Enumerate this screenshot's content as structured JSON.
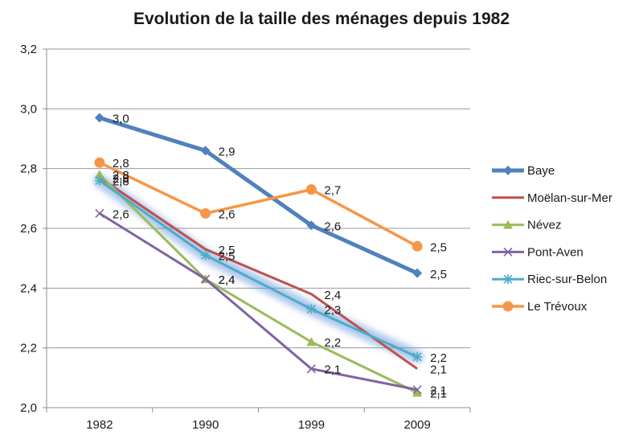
{
  "chart_data": {
    "type": "line",
    "title": "Evolution de la taille des ménages depuis 1982",
    "categories": [
      "1982",
      "1990",
      "1999",
      "2009"
    ],
    "ylim": [
      2.0,
      3.2
    ],
    "yticks": [
      "2,0",
      "2,2",
      "2,4",
      "2,6",
      "2,8",
      "3,0",
      "3,2"
    ],
    "ytick_values": [
      2.0,
      2.2,
      2.4,
      2.6,
      2.8,
      3.0,
      3.2
    ],
    "grid": "horizontal",
    "legend": "right",
    "series": [
      {
        "name": "Baye",
        "values": [
          2.97,
          2.86,
          2.61,
          2.45
        ],
        "labels": [
          "3,0",
          "2,9",
          "2,6",
          "2,5"
        ],
        "color": "#4F81BD",
        "marker": "diamond"
      },
      {
        "name": "Moëlan-sur-Mer",
        "values": [
          2.77,
          2.53,
          2.38,
          2.13
        ],
        "labels": [
          "2,8",
          "2,5",
          "2,4",
          "2,1"
        ],
        "color": "#C0504D",
        "marker": "none"
      },
      {
        "name": "Névez",
        "values": [
          2.78,
          2.43,
          2.22,
          2.05
        ],
        "labels": [
          "2,8",
          "2,4",
          "2,2",
          "2,1"
        ],
        "color": "#9BBB59",
        "marker": "triangle"
      },
      {
        "name": "Pont-Aven",
        "values": [
          2.65,
          2.43,
          2.13,
          2.06
        ],
        "labels": [
          "2,6",
          "2,4",
          "2,1",
          "2,1"
        ],
        "color": "#8064A2",
        "marker": "x"
      },
      {
        "name": "Riec-sur-Belon",
        "values": [
          2.76,
          2.51,
          2.33,
          2.17
        ],
        "labels": [
          "2,8",
          "2,5",
          "2,3",
          "2,2"
        ],
        "color": "#4BACC6",
        "marker": "star"
      },
      {
        "name": "Le Trévoux",
        "values": [
          2.82,
          2.65,
          2.73,
          2.54
        ],
        "labels": [
          "2,8",
          "2,6",
          "2,7",
          "2,5"
        ],
        "color": "#F79646",
        "marker": "circle"
      }
    ]
  }
}
